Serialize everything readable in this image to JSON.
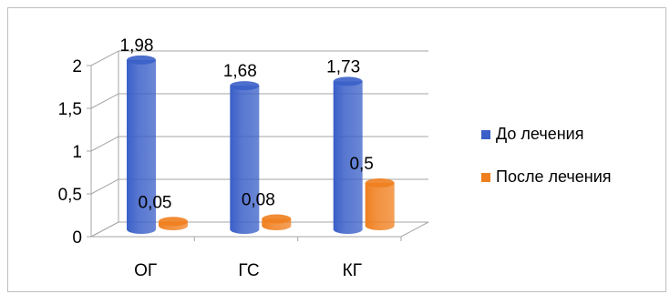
{
  "chart_data": {
    "type": "bar",
    "categories": [
      "ОГ",
      "ГС",
      "КГ"
    ],
    "series": [
      {
        "name": "До лечения",
        "values": [
          1.98,
          1.68,
          1.73
        ],
        "labels": [
          "1,98",
          "1,68",
          "1,73"
        ],
        "color": "#3a5fc8"
      },
      {
        "name": "После лечения",
        "values": [
          0.05,
          0.08,
          0.5
        ],
        "labels": [
          "0,05",
          "0,08",
          "0,5"
        ],
        "color": "#f07f1f"
      }
    ],
    "yticks": [
      "0",
      "0,5",
      "1",
      "1,5",
      "2"
    ],
    "ylim": [
      0,
      2
    ],
    "grid": true,
    "legend_position": "right"
  }
}
